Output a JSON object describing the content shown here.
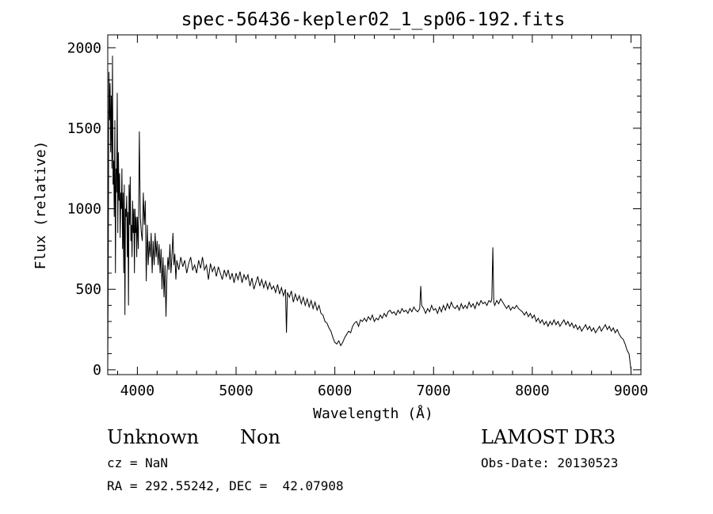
{
  "chart_data": {
    "type": "line",
    "title": "spec-56436-kepler02_1_sp06-192.fits",
    "xlabel": "Wavelength (Å)",
    "ylabel": "Flux (relative)",
    "xlim": [
      3700,
      9100
    ],
    "ylim": [
      -30,
      2080
    ],
    "xticks": [
      4000,
      5000,
      6000,
      7000,
      8000,
      9000
    ],
    "yticks": [
      0,
      500,
      1000,
      1500,
      2000
    ],
    "grid": false,
    "series": [
      {
        "points": [
          [
            3700,
            0
          ],
          [
            3705,
            620
          ],
          [
            3712,
            1850
          ],
          [
            3718,
            1550
          ],
          [
            3724,
            1780
          ],
          [
            3730,
            1350
          ],
          [
            3736,
            1700
          ],
          [
            3742,
            1250
          ],
          [
            3748,
            1950
          ],
          [
            3754,
            1150
          ],
          [
            3760,
            1300
          ],
          [
            3766,
            950
          ],
          [
            3772,
            1550
          ],
          [
            3778,
            600
          ],
          [
            3784,
            1250
          ],
          [
            3790,
            1100
          ],
          [
            3796,
            1720
          ],
          [
            3802,
            850
          ],
          [
            3808,
            1350
          ],
          [
            3814,
            1050
          ],
          [
            3820,
            1220
          ],
          [
            3826,
            820
          ],
          [
            3832,
            1100
          ],
          [
            3838,
            1000
          ],
          [
            3844,
            1250
          ],
          [
            3850,
            750
          ],
          [
            3856,
            1100
          ],
          [
            3862,
            600
          ],
          [
            3868,
            1150
          ],
          [
            3874,
            340
          ],
          [
            3880,
            1000
          ],
          [
            3886,
            950
          ],
          [
            3892,
            1080
          ],
          [
            3898,
            700
          ],
          [
            3904,
            980
          ],
          [
            3910,
            400
          ],
          [
            3916,
            1150
          ],
          [
            3922,
            900
          ],
          [
            3928,
            1200
          ],
          [
            3934,
            800
          ],
          [
            3940,
            900
          ],
          [
            3946,
            700
          ],
          [
            3952,
            1050
          ],
          [
            3958,
            850
          ],
          [
            3964,
            1000
          ],
          [
            3970,
            600
          ],
          [
            3976,
            1000
          ],
          [
            3982,
            850
          ],
          [
            3988,
            950
          ],
          [
            3994,
            700
          ],
          [
            4000,
            950
          ],
          [
            4010,
            750
          ],
          [
            4020,
            1480
          ],
          [
            4030,
            950
          ],
          [
            4040,
            850
          ],
          [
            4050,
            800
          ],
          [
            4060,
            1100
          ],
          [
            4070,
            900
          ],
          [
            4080,
            1050
          ],
          [
            4090,
            550
          ],
          [
            4100,
            900
          ],
          [
            4110,
            650
          ],
          [
            4120,
            800
          ],
          [
            4130,
            700
          ],
          [
            4140,
            850
          ],
          [
            4150,
            600
          ],
          [
            4160,
            800
          ],
          [
            4170,
            650
          ],
          [
            4180,
            850
          ],
          [
            4190,
            700
          ],
          [
            4200,
            800
          ],
          [
            4210,
            650
          ],
          [
            4220,
            780
          ],
          [
            4230,
            600
          ],
          [
            4240,
            750
          ],
          [
            4250,
            500
          ],
          [
            4260,
            700
          ],
          [
            4270,
            450
          ],
          [
            4280,
            650
          ],
          [
            4290,
            330
          ],
          [
            4300,
            600
          ],
          [
            4310,
            700
          ],
          [
            4320,
            620
          ],
          [
            4330,
            780
          ],
          [
            4340,
            600
          ],
          [
            4350,
            700
          ],
          [
            4360,
            850
          ],
          [
            4370,
            650
          ],
          [
            4380,
            720
          ],
          [
            4390,
            560
          ],
          [
            4400,
            680
          ],
          [
            4420,
            620
          ],
          [
            4440,
            700
          ],
          [
            4460,
            640
          ],
          [
            4480,
            680
          ],
          [
            4500,
            600
          ],
          [
            4520,
            660
          ],
          [
            4540,
            700
          ],
          [
            4560,
            620
          ],
          [
            4580,
            650
          ],
          [
            4600,
            600
          ],
          [
            4620,
            680
          ],
          [
            4640,
            630
          ],
          [
            4660,
            700
          ],
          [
            4680,
            620
          ],
          [
            4700,
            650
          ],
          [
            4720,
            560
          ],
          [
            4740,
            660
          ],
          [
            4760,
            610
          ],
          [
            4780,
            640
          ],
          [
            4800,
            580
          ],
          [
            4820,
            640
          ],
          [
            4840,
            600
          ],
          [
            4860,
            560
          ],
          [
            4880,
            620
          ],
          [
            4900,
            580
          ],
          [
            4920,
            620
          ],
          [
            4940,
            560
          ],
          [
            4960,
            600
          ],
          [
            4980,
            540
          ],
          [
            5000,
            600
          ],
          [
            5020,
            560
          ],
          [
            5040,
            610
          ],
          [
            5060,
            540
          ],
          [
            5080,
            590
          ],
          [
            5100,
            560
          ],
          [
            5120,
            590
          ],
          [
            5140,
            520
          ],
          [
            5160,
            570
          ],
          [
            5180,
            500
          ],
          [
            5200,
            540
          ],
          [
            5220,
            580
          ],
          [
            5240,
            520
          ],
          [
            5260,
            560
          ],
          [
            5280,
            510
          ],
          [
            5300,
            550
          ],
          [
            5320,
            500
          ],
          [
            5340,
            540
          ],
          [
            5360,
            500
          ],
          [
            5380,
            520
          ],
          [
            5400,
            480
          ],
          [
            5420,
            530
          ],
          [
            5440,
            470
          ],
          [
            5460,
            510
          ],
          [
            5480,
            460
          ],
          [
            5500,
            500
          ],
          [
            5510,
            230
          ],
          [
            5520,
            480
          ],
          [
            5540,
            450
          ],
          [
            5560,
            490
          ],
          [
            5580,
            420
          ],
          [
            5600,
            470
          ],
          [
            5620,
            430
          ],
          [
            5640,
            460
          ],
          [
            5660,
            410
          ],
          [
            5680,
            450
          ],
          [
            5700,
            400
          ],
          [
            5720,
            440
          ],
          [
            5740,
            390
          ],
          [
            5760,
            430
          ],
          [
            5780,
            380
          ],
          [
            5800,
            420
          ],
          [
            5820,
            370
          ],
          [
            5840,
            400
          ],
          [
            5860,
            350
          ],
          [
            5880,
            340
          ],
          [
            5900,
            300
          ],
          [
            5920,
            290
          ],
          [
            5940,
            260
          ],
          [
            5960,
            240
          ],
          [
            5980,
            200
          ],
          [
            6000,
            170
          ],
          [
            6020,
            160
          ],
          [
            6040,
            180
          ],
          [
            6060,
            150
          ],
          [
            6080,
            170
          ],
          [
            6100,
            200
          ],
          [
            6120,
            220
          ],
          [
            6140,
            240
          ],
          [
            6160,
            230
          ],
          [
            6180,
            270
          ],
          [
            6200,
            290
          ],
          [
            6220,
            300
          ],
          [
            6240,
            270
          ],
          [
            6260,
            310
          ],
          [
            6280,
            300
          ],
          [
            6300,
            320
          ],
          [
            6320,
            300
          ],
          [
            6340,
            330
          ],
          [
            6360,
            310
          ],
          [
            6380,
            340
          ],
          [
            6400,
            300
          ],
          [
            6420,
            320
          ],
          [
            6440,
            310
          ],
          [
            6460,
            340
          ],
          [
            6480,
            320
          ],
          [
            6500,
            350
          ],
          [
            6520,
            330
          ],
          [
            6540,
            360
          ],
          [
            6560,
            370
          ],
          [
            6580,
            350
          ],
          [
            6600,
            360
          ],
          [
            6620,
            340
          ],
          [
            6640,
            370
          ],
          [
            6660,
            350
          ],
          [
            6680,
            380
          ],
          [
            6700,
            360
          ],
          [
            6720,
            370
          ],
          [
            6740,
            350
          ],
          [
            6760,
            380
          ],
          [
            6780,
            360
          ],
          [
            6800,
            390
          ],
          [
            6820,
            370
          ],
          [
            6840,
            360
          ],
          [
            6860,
            380
          ],
          [
            6870,
            520
          ],
          [
            6880,
            400
          ],
          [
            6900,
            380
          ],
          [
            6920,
            350
          ],
          [
            6940,
            380
          ],
          [
            6960,
            360
          ],
          [
            6980,
            400
          ],
          [
            7000,
            370
          ],
          [
            7020,
            380
          ],
          [
            7040,
            350
          ],
          [
            7060,
            390
          ],
          [
            7080,
            360
          ],
          [
            7100,
            400
          ],
          [
            7120,
            370
          ],
          [
            7140,
            410
          ],
          [
            7160,
            380
          ],
          [
            7180,
            420
          ],
          [
            7200,
            390
          ],
          [
            7220,
            380
          ],
          [
            7240,
            400
          ],
          [
            7260,
            370
          ],
          [
            7280,
            410
          ],
          [
            7300,
            380
          ],
          [
            7320,
            400
          ],
          [
            7340,
            380
          ],
          [
            7360,
            420
          ],
          [
            7380,
            390
          ],
          [
            7400,
            410
          ],
          [
            7420,
            380
          ],
          [
            7440,
            420
          ],
          [
            7460,
            400
          ],
          [
            7480,
            430
          ],
          [
            7500,
            410
          ],
          [
            7520,
            420
          ],
          [
            7540,
            400
          ],
          [
            7560,
            430
          ],
          [
            7580,
            420
          ],
          [
            7590,
            440
          ],
          [
            7600,
            760
          ],
          [
            7610,
            420
          ],
          [
            7620,
            400
          ],
          [
            7640,
            430
          ],
          [
            7660,
            410
          ],
          [
            7680,
            440
          ],
          [
            7700,
            420
          ],
          [
            7720,
            400
          ],
          [
            7740,
            380
          ],
          [
            7760,
            400
          ],
          [
            7780,
            370
          ],
          [
            7800,
            390
          ],
          [
            7820,
            380
          ],
          [
            7840,
            400
          ],
          [
            7860,
            380
          ],
          [
            7880,
            370
          ],
          [
            7900,
            360
          ],
          [
            7920,
            340
          ],
          [
            7940,
            360
          ],
          [
            7960,
            330
          ],
          [
            7980,
            350
          ],
          [
            8000,
            320
          ],
          [
            8020,
            340
          ],
          [
            8040,
            300
          ],
          [
            8060,
            320
          ],
          [
            8080,
            290
          ],
          [
            8100,
            310
          ],
          [
            8120,
            280
          ],
          [
            8140,
            300
          ],
          [
            8160,
            270
          ],
          [
            8180,
            300
          ],
          [
            8200,
            280
          ],
          [
            8220,
            310
          ],
          [
            8240,
            280
          ],
          [
            8260,
            300
          ],
          [
            8280,
            270
          ],
          [
            8300,
            290
          ],
          [
            8320,
            310
          ],
          [
            8340,
            280
          ],
          [
            8360,
            300
          ],
          [
            8380,
            270
          ],
          [
            8400,
            290
          ],
          [
            8420,
            260
          ],
          [
            8440,
            280
          ],
          [
            8460,
            250
          ],
          [
            8480,
            270
          ],
          [
            8500,
            240
          ],
          [
            8520,
            260
          ],
          [
            8540,
            280
          ],
          [
            8560,
            250
          ],
          [
            8580,
            270
          ],
          [
            8600,
            240
          ],
          [
            8620,
            260
          ],
          [
            8640,
            230
          ],
          [
            8660,
            250
          ],
          [
            8680,
            270
          ],
          [
            8700,
            240
          ],
          [
            8720,
            260
          ],
          [
            8740,
            280
          ],
          [
            8760,
            250
          ],
          [
            8780,
            270
          ],
          [
            8800,
            240
          ],
          [
            8820,
            260
          ],
          [
            8840,
            230
          ],
          [
            8860,
            250
          ],
          [
            8880,
            220
          ],
          [
            8900,
            200
          ],
          [
            8920,
            190
          ],
          [
            8940,
            160
          ],
          [
            8960,
            120
          ],
          [
            8980,
            100
          ],
          [
            9000,
            0
          ]
        ]
      }
    ]
  },
  "info": {
    "class": "Unknown",
    "subclass": "Non",
    "survey": "LAMOST DR3",
    "cz": "cz = NaN",
    "obs_date": "Obs-Date: 20130523",
    "coords": "RA = 292.55242, DEC =  42.07908"
  }
}
